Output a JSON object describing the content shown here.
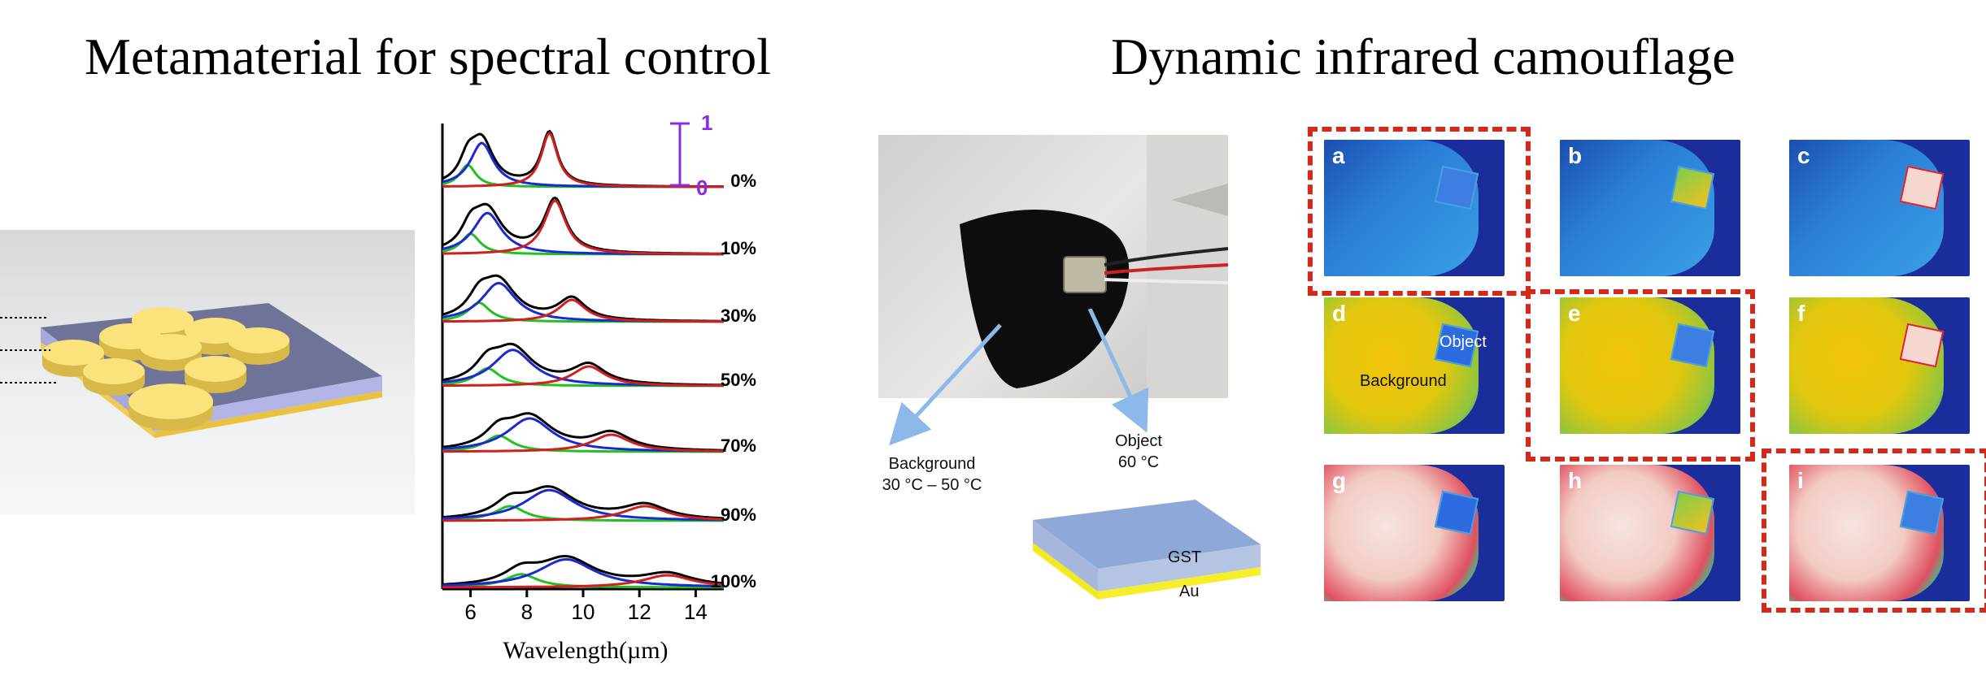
{
  "titles": {
    "left": "Metamaterial for spectral control",
    "right": "Dynamic infrared camouflage"
  },
  "spectra": {
    "scale_bar": {
      "top": "1",
      "bottom": "0"
    },
    "curve_labels": [
      "0%",
      "10%",
      "30%",
      "50%",
      "70%",
      "90%",
      "100%"
    ],
    "xlabel": "Wavelength(µm)",
    "xticks": [
      "6",
      "8",
      "10",
      "12",
      "14"
    ]
  },
  "chart_data": {
    "type": "line",
    "xlabel": "Wavelength(µm)",
    "xlim": [
      5,
      15
    ],
    "offset_labels": [
      "0%",
      "10%",
      "30%",
      "50%",
      "70%",
      "90%",
      "100%"
    ],
    "series_colors": {
      "measured": "#000000",
      "fit_low": "#22c022",
      "fit_main": "#1a2ad0",
      "fit_high": "#d21e1e"
    },
    "peaks": [
      {
        "label": "0%",
        "low": 5.9,
        "main": 6.4,
        "high": 8.8
      },
      {
        "label": "10%",
        "low": 6.0,
        "main": 6.6,
        "high": 9.0
      },
      {
        "label": "30%",
        "low": 6.3,
        "main": 7.0,
        "high": 9.6
      },
      {
        "label": "50%",
        "low": 6.6,
        "main": 7.5,
        "high": 10.2
      },
      {
        "label": "70%",
        "low": 7.0,
        "main": 8.1,
        "high": 11.0
      },
      {
        "label": "90%",
        "low": 7.4,
        "main": 8.8,
        "high": 12.2
      },
      {
        "label": "100%",
        "low": 7.8,
        "main": 9.4,
        "high": 13.0
      }
    ]
  },
  "photo": {
    "background_label": "Background",
    "background_range": "30 °C – 50 °C",
    "object_label": "Object",
    "object_temp": "60 °C"
  },
  "stack": {
    "top_layer": "GST",
    "bottom_layer": "Au"
  },
  "thermal_grid": {
    "cells": [
      {
        "label": "a",
        "theme": "blue",
        "object": "dim"
      },
      {
        "label": "b",
        "theme": "blue",
        "object": "yellow"
      },
      {
        "label": "c",
        "theme": "blue",
        "object": "pink"
      },
      {
        "label": "d",
        "theme": "yellow",
        "object": "notch"
      },
      {
        "label": "e",
        "theme": "yellow",
        "object": "dim"
      },
      {
        "label": "f",
        "theme": "yellow",
        "object": "pink"
      },
      {
        "label": "g",
        "theme": "pink",
        "object": "blue"
      },
      {
        "label": "h",
        "theme": "pink",
        "object": "yellow"
      },
      {
        "label": "i",
        "theme": "pink",
        "object": "dim"
      }
    ],
    "in_image_labels": {
      "object": "Object",
      "background": "Background"
    },
    "colors": {
      "frame": "#d12a1b"
    }
  }
}
